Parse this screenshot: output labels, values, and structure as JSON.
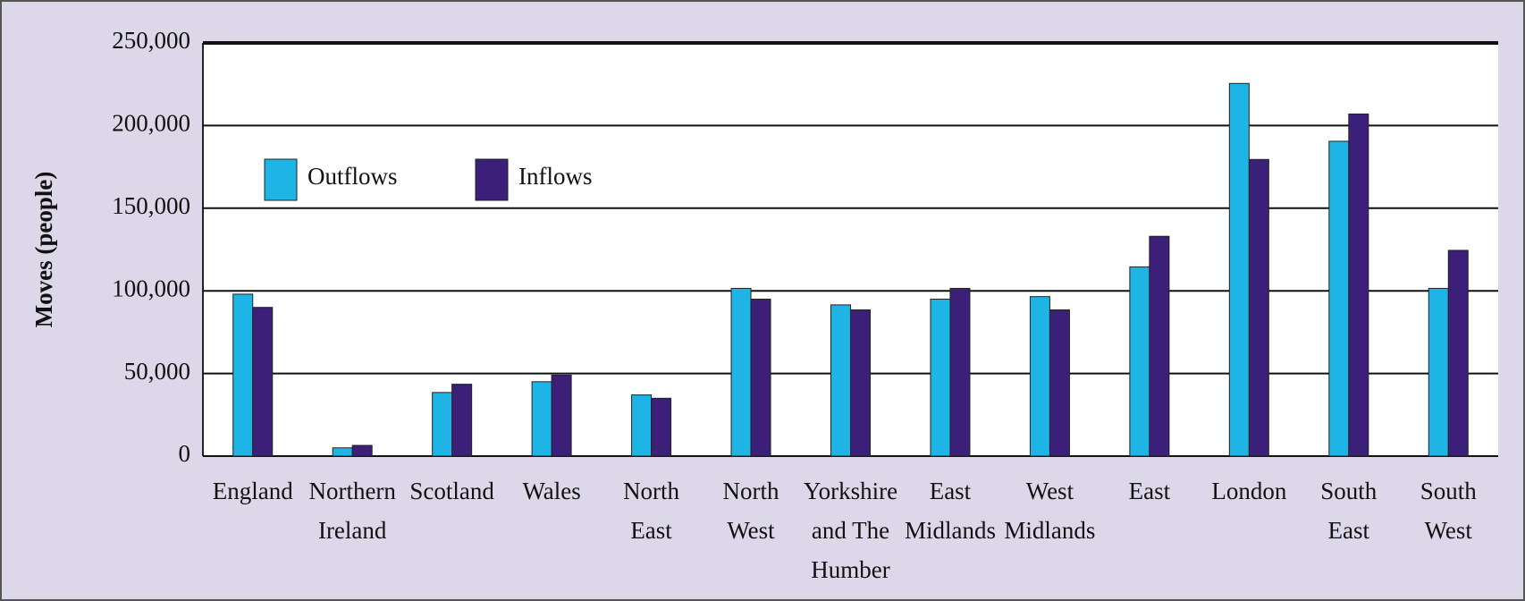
{
  "chart_data": {
    "type": "bar",
    "y_label": "Moves (people)",
    "categories": [
      [
        "England"
      ],
      [
        "Northern",
        "Ireland"
      ],
      [
        "Scotland"
      ],
      [
        "Wales"
      ],
      [
        "North",
        "East"
      ],
      [
        "North",
        "West"
      ],
      [
        "Yorkshire",
        "and The",
        "Humber"
      ],
      [
        "East",
        "Midlands"
      ],
      [
        "West",
        "Midlands"
      ],
      [
        "East"
      ],
      [
        "London"
      ],
      [
        "South",
        "East"
      ],
      [
        "South",
        "West"
      ]
    ],
    "series": [
      {
        "name": "Outflows",
        "color": "#1fb4e6",
        "values": [
          98000,
          5000,
          38500,
          45000,
          37000,
          101500,
          91500,
          95000,
          96500,
          114500,
          225500,
          190500,
          101500
        ]
      },
      {
        "name": "Inflows",
        "color": "#3b1f78",
        "values": [
          90000,
          6500,
          43500,
          49000,
          35000,
          95000,
          88500,
          101500,
          88500,
          133000,
          179500,
          207000,
          124500
        ]
      }
    ],
    "ylim": [
      0,
      250000
    ],
    "yticks": [
      0,
      {
        "value": 50000,
        "label": "50,000"
      },
      {
        "value": 100000,
        "label": "100,000"
      },
      {
        "value": 150000,
        "label": "150,000"
      },
      {
        "value": 200000,
        "label": "200,000"
      },
      {
        "value": 250000,
        "label": "250,000"
      }
    ],
    "grid": true,
    "legend": "upper-left"
  }
}
